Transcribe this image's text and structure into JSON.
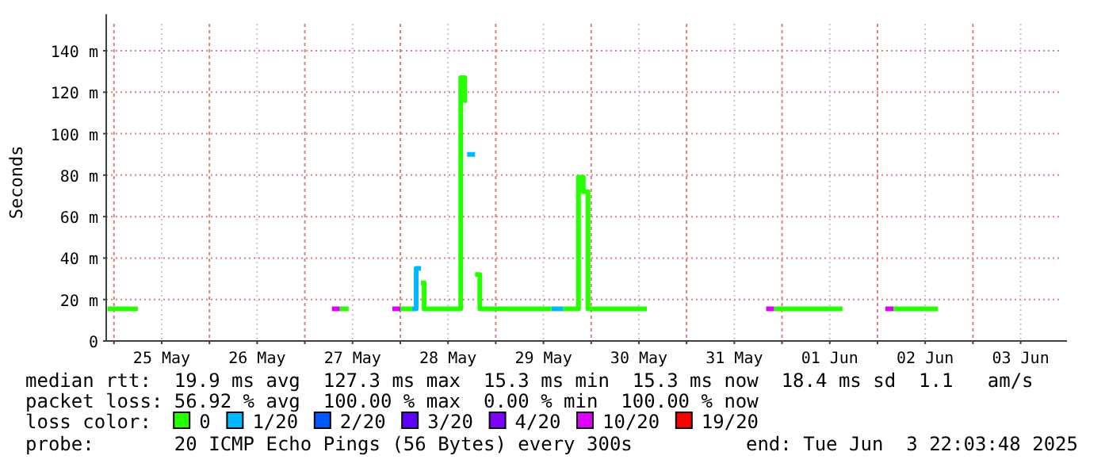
{
  "chart_data": {
    "type": "step",
    "ylabel": "Seconds",
    "legend_title": "loss color:",
    "legend": "bottom",
    "grid": true,
    "xlim": [
      "2025-05-24T22:03",
      "2025-06-03T22:03"
    ],
    "xticks": [
      {
        "value": "2025-05-25T00:00",
        "label": null
      },
      {
        "value": "2025-05-25T12:00",
        "label": "25 May"
      },
      {
        "value": "2025-05-26T00:00",
        "label": null
      },
      {
        "value": "2025-05-26T12:00",
        "label": "26 May"
      },
      {
        "value": "2025-05-27T00:00",
        "label": null
      },
      {
        "value": "2025-05-27T12:00",
        "label": "27 May"
      },
      {
        "value": "2025-05-28T00:00",
        "label": null
      },
      {
        "value": "2025-05-28T12:00",
        "label": "28 May"
      },
      {
        "value": "2025-05-29T00:00",
        "label": null
      },
      {
        "value": "2025-05-29T12:00",
        "label": "29 May"
      },
      {
        "value": "2025-05-30T00:00",
        "label": null
      },
      {
        "value": "2025-05-30T12:00",
        "label": "30 May"
      },
      {
        "value": "2025-05-31T00:00",
        "label": null
      },
      {
        "value": "2025-05-31T12:00",
        "label": "31 May"
      },
      {
        "value": "2025-06-01T00:00",
        "label": null
      },
      {
        "value": "2025-06-01T12:00",
        "label": "01 Jun"
      },
      {
        "value": "2025-06-02T00:00",
        "label": null
      },
      {
        "value": "2025-06-02T12:00",
        "label": "02 Jun"
      },
      {
        "value": "2025-06-03T00:00",
        "label": null
      },
      {
        "value": "2025-06-03T12:00",
        "label": "03 Jun"
      }
    ],
    "ylim": [
      0,
      153
    ],
    "yticks": [
      0,
      {
        "value": 20,
        "label": "20 m"
      },
      {
        "value": 40,
        "label": "40 m"
      },
      {
        "value": 60,
        "label": "60 m"
      },
      {
        "value": 80,
        "label": "80 m"
      },
      {
        "value": 100,
        "label": "100 m"
      },
      {
        "value": 120,
        "label": "120 m"
      },
      {
        "value": 140,
        "label": "140 m"
      }
    ],
    "series": [
      {
        "name": "0",
        "color": "#26ff00",
        "x": [
          "2025-05-24T22:24",
          "2025-05-25T06:00"
        ],
        "values": [
          15.5,
          15.5
        ]
      },
      {
        "name": "1/20",
        "color": "#00b8ff",
        "x": [
          "2025-05-28T03:00",
          "2025-05-28T04:00",
          "2025-05-28T05:12"
        ],
        "values": [
          15.5,
          35,
          35
        ]
      },
      {
        "name": "2/20",
        "color": "#0059ff"
      },
      {
        "name": "3/20",
        "color": "#5e00ff"
      },
      {
        "name": "4/20",
        "color": "#7e00ff"
      },
      {
        "name": "10/20",
        "color": "#dd00ff",
        "x": [
          "2025-05-27T06:48",
          "2025-05-27T08:48"
        ],
        "values": [
          15.5,
          15.5
        ]
      },
      {
        "name": "19/20",
        "color": "#ff0000"
      },
      {
        "color": "#26ff00",
        "x": [
          "2025-05-27T08:48",
          "2025-05-27T11:00"
        ],
        "values": [
          15.5,
          15.5
        ]
      },
      {
        "color": "#26ff00",
        "x": [
          "2025-05-28T00:00",
          "2025-05-28T03:00"
        ],
        "values": [
          15.5,
          15.5
        ]
      },
      {
        "color": "#26ff00",
        "x": [
          "2025-05-28T05:12",
          "2025-05-28T06:00",
          "2025-05-28T15:12",
          "2025-05-28T16:12",
          "2025-05-28T16:48"
        ],
        "values": [
          28,
          15.5,
          127,
          116,
          116
        ]
      },
      {
        "color": "#26ff00",
        "x": [
          "2025-05-28T18:48",
          "2025-05-28T20:00",
          "2025-05-29T14:00"
        ],
        "values": [
          32,
          15.5,
          15.5
        ]
      },
      {
        "color": "#26ff00",
        "x": [
          "2025-05-29T17:00",
          "2025-05-29T20:48",
          "2025-05-29T22:00",
          "2025-05-29T23:12",
          "2025-05-30T14:00"
        ],
        "values": [
          15.5,
          79,
          72,
          15.5,
          15.5
        ]
      },
      {
        "color": "#26ff00",
        "x": [
          "2025-05-31T22:00",
          "2025-06-01T15:12"
        ],
        "values": [
          15.5,
          15.5
        ]
      },
      {
        "color": "#26ff00",
        "x": [
          "2025-06-02T04:00",
          "2025-06-02T15:12"
        ],
        "values": [
          15.5,
          15.5
        ]
      },
      {
        "color": "#00b8ff",
        "x": [
          "2025-05-28T16:48",
          "2025-05-28T18:48"
        ],
        "values": [
          90,
          90
        ]
      },
      {
        "color": "#00b8ff",
        "x": [
          "2025-05-29T14:00",
          "2025-05-29T17:00"
        ],
        "values": [
          15.5,
          15.5
        ]
      },
      {
        "color": "#dd00ff",
        "x": [
          "2025-05-27T22:00",
          "2025-05-28T00:00"
        ],
        "values": [
          15.5,
          15.5
        ]
      },
      {
        "color": "#dd00ff",
        "x": [
          "2025-05-31T20:00",
          "2025-05-31T22:00"
        ],
        "values": [
          15.5,
          15.5
        ]
      },
      {
        "color": "#dd00ff",
        "x": [
          "2025-06-02T02:00",
          "2025-06-02T04:00"
        ],
        "values": [
          15.5,
          15.5
        ]
      }
    ],
    "annotations": [
      "median rtt:  19.9 ms avg  127.3 ms max  15.3 ms min  15.3 ms now  18.4 ms sd  1.1   am/s",
      "packet loss: 56.92 % avg  100.00 % max  0.00 % min  100.00 % now",
      "probe:       20 ICMP Echo Pings (56 Bytes) every 300s",
      "end: Tue Jun  3 22:03:48 2025"
    ]
  }
}
